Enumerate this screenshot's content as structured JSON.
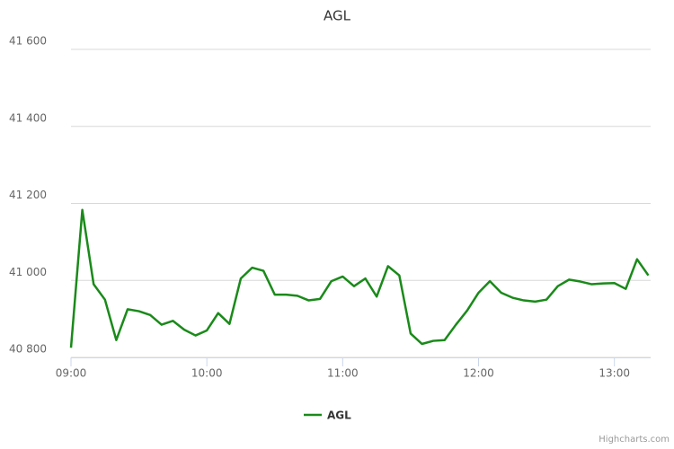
{
  "chart_data": {
    "type": "line",
    "title": "AGL",
    "x": [
      540,
      545,
      550,
      555,
      560,
      565,
      570,
      575,
      580,
      585,
      590,
      595,
      600,
      605,
      610,
      615,
      620,
      625,
      630,
      635,
      640,
      645,
      650,
      655,
      660,
      665,
      670,
      675,
      680,
      685,
      690,
      695,
      700,
      705,
      710,
      715,
      720,
      725,
      730,
      735,
      740,
      745,
      750,
      755,
      760,
      765,
      770,
      775,
      780,
      785,
      790,
      795
    ],
    "series": [
      {
        "name": "AGL",
        "color": "#1a8a1a",
        "values": [
          40825,
          41183,
          40990,
          40950,
          40845,
          40925,
          40920,
          40910,
          40885,
          40895,
          40872,
          40857,
          40870,
          40915,
          40887,
          41005,
          41033,
          41025,
          40963,
          40963,
          40960,
          40948,
          40952,
          40998,
          41010,
          40985,
          41005,
          40958,
          41037,
          41013,
          40862,
          40835,
          40843,
          40845,
          40885,
          40922,
          40968,
          40998,
          40968,
          40955,
          40948,
          40945,
          40950,
          40985,
          41002,
          40997,
          40990,
          40992,
          40993,
          40978,
          41055,
          41013
        ]
      }
    ],
    "xlim": [
      540,
      796
    ],
    "xticks": [
      {
        "value": 540,
        "label": "09:00"
      },
      {
        "value": 600,
        "label": "10:00"
      },
      {
        "value": 660,
        "label": "11:00"
      },
      {
        "value": 720,
        "label": "12:00"
      },
      {
        "value": 780,
        "label": "13:00"
      }
    ],
    "ylim": [
      40800,
      41600
    ],
    "yticks": [
      {
        "value": 40800,
        "label": "40 800"
      },
      {
        "value": 41000,
        "label": "41 000"
      },
      {
        "value": 41200,
        "label": "41 200"
      },
      {
        "value": 41400,
        "label": "41 400"
      },
      {
        "value": 41600,
        "label": "41 600"
      }
    ],
    "grid": true,
    "credits": "Highcharts.com"
  }
}
